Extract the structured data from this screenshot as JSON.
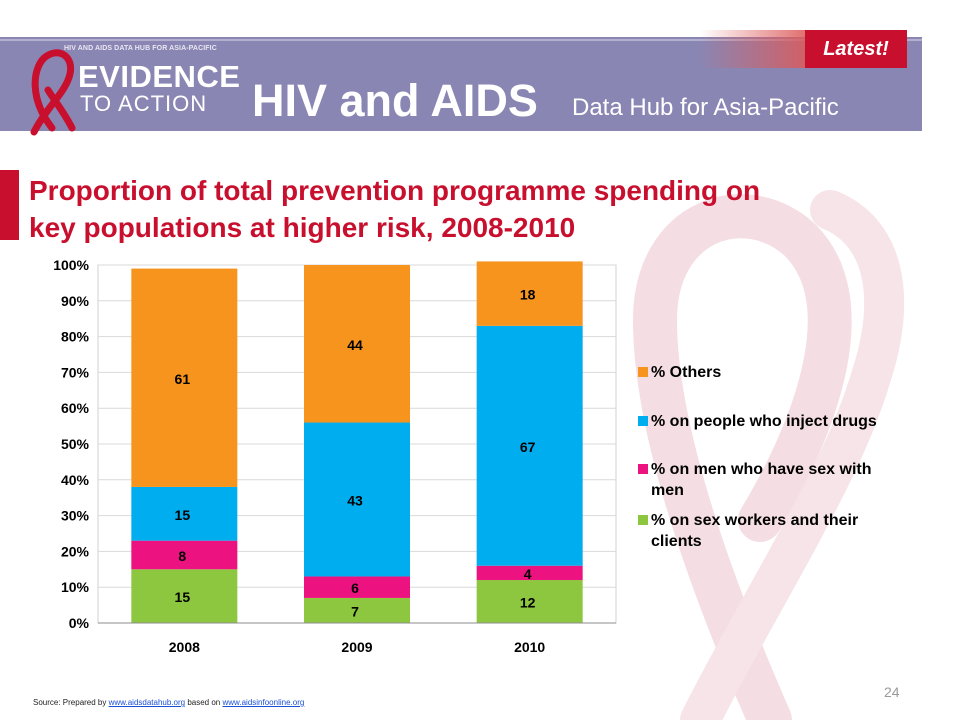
{
  "header": {
    "logo_small_text": "HIV AND AIDS DATA HUB FOR ASIA-PACIFIC",
    "logo_line1": "EVIDENCE",
    "logo_line2": "TO ACTION",
    "title": "HIV and AIDS",
    "subtitle": "Data Hub for Asia-Pacific",
    "badge": "Latest!"
  },
  "slide": {
    "title_line1": "Proportion of total prevention programme spending on",
    "title_line2": "key populations at higher risk, 2008-2010",
    "page_number": "24"
  },
  "source": {
    "prefix": "Source: Prepared by ",
    "link1": "www.aidsdatahub.org",
    "middle": " based on ",
    "link2": "www.aidsinfoonline.org"
  },
  "colors": {
    "brand_red": "#c8102e",
    "header_purple": "#8a86b3"
  },
  "chart_data": {
    "type": "bar",
    "stacked": true,
    "percent": true,
    "categories": [
      "2008",
      "2009",
      "2010"
    ],
    "series": [
      {
        "name": "% on sex workers and their clients",
        "values": [
          15,
          7,
          12
        ],
        "color": "#8dc63f"
      },
      {
        "name": "% on men who have sex with men",
        "values": [
          8,
          6,
          4
        ],
        "color": "#ec1380"
      },
      {
        "name": "% on people who inject drugs",
        "values": [
          15,
          43,
          67
        ],
        "color": "#00aeef"
      },
      {
        "name": "% Others",
        "values": [
          61,
          44,
          18
        ],
        "color": "#f7941d"
      }
    ],
    "ylim": [
      0,
      100
    ],
    "yticks": [
      "0%",
      "10%",
      "20%",
      "30%",
      "40%",
      "50%",
      "60%",
      "70%",
      "80%",
      "90%",
      "100%"
    ],
    "grid": true,
    "legend_position": "right",
    "legend_order": [
      "% Others",
      "% on people who inject drugs",
      "% on men who have sex with men",
      "% on sex workers and their clients"
    ],
    "legend_labels": {
      "% Others": [
        "% Others"
      ],
      "% on people who inject drugs": [
        "% on people who inject drugs"
      ],
      "% on men who have sex with men": [
        "% on men who have sex with",
        "men"
      ],
      "% on sex workers and their clients": [
        "% on sex workers and their",
        "clients"
      ]
    }
  }
}
